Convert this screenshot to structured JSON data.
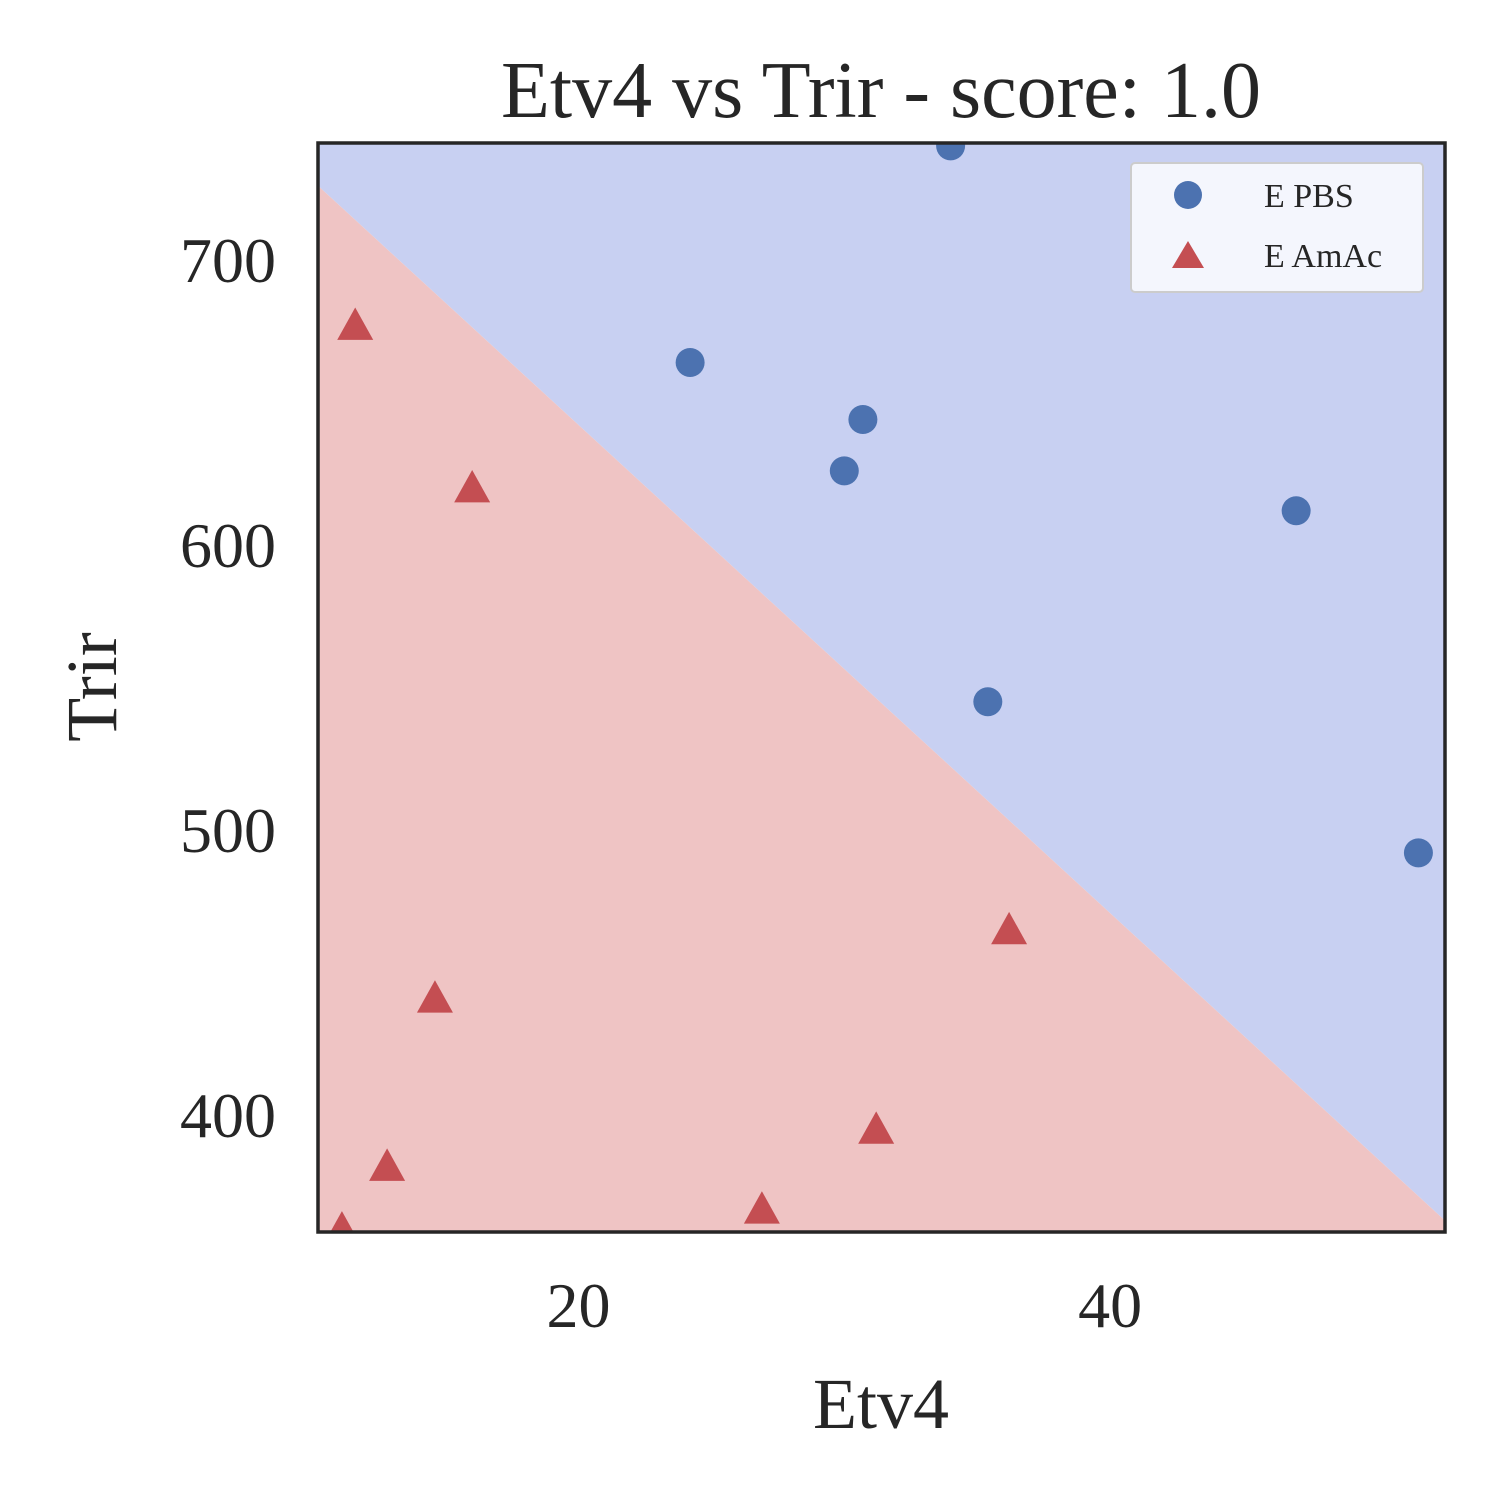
{
  "chart_data": {
    "type": "scatter",
    "title": "Etv4 vs Trir - score: 1.0",
    "xlabel": "Etv4",
    "ylabel": "Trir",
    "xlim": [
      10.2,
      52.6
    ],
    "ylim": [
      359,
      741
    ],
    "xticks": [
      20,
      40
    ],
    "yticks": [
      400,
      500,
      600,
      700
    ],
    "grid": false,
    "legend_position": "top-right",
    "decision_boundary": {
      "p1": [
        10.2,
        726
      ],
      "p2": [
        52.6,
        363
      ],
      "upper_region_color": "#c8d0f2",
      "lower_region_color": "#efc4c4"
    },
    "series": [
      {
        "name": "E PBS",
        "marker": "circle",
        "color": "#4c72b0",
        "points": [
          [
            34.0,
            740
          ],
          [
            24.2,
            664
          ],
          [
            30.7,
            644
          ],
          [
            30.0,
            626
          ],
          [
            47.0,
            612
          ],
          [
            35.4,
            545
          ],
          [
            51.6,
            492
          ]
        ]
      },
      {
        "name": "E AmAc",
        "marker": "triangle",
        "color": "#c44e52",
        "points": [
          [
            11.6,
            677
          ],
          [
            16.0,
            620
          ],
          [
            36.2,
            465
          ],
          [
            14.6,
            441
          ],
          [
            31.2,
            395
          ],
          [
            12.8,
            382
          ],
          [
            26.9,
            367
          ],
          [
            11.1,
            360
          ]
        ]
      }
    ]
  }
}
